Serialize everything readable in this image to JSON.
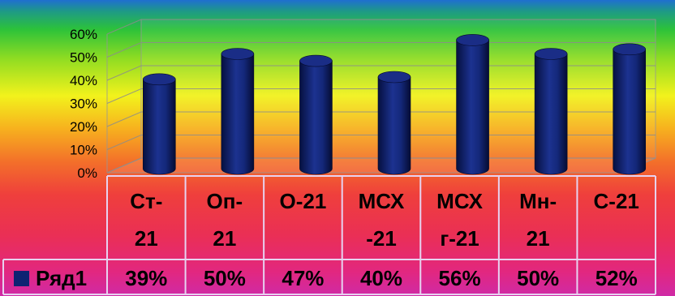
{
  "chart_data": {
    "type": "bar",
    "categories": [
      [
        "Ст-",
        "21"
      ],
      [
        "Оп-",
        "21"
      ],
      [
        "О-21"
      ],
      [
        "МСХ",
        "-21"
      ],
      [
        "МСХ",
        "г-21"
      ],
      [
        "Мн-",
        "21"
      ],
      [
        "С-21"
      ]
    ],
    "series": [
      {
        "name": "Ряд1",
        "values": [
          39,
          50,
          47,
          40,
          56,
          50,
          52
        ],
        "labels": [
          "39%",
          "50%",
          "47%",
          "40%",
          "56%",
          "50%",
          "52%"
        ],
        "color": "#0e2372"
      }
    ],
    "y_ticks": [
      "0%",
      "10%",
      "20%",
      "30%",
      "40%",
      "50%",
      "60%"
    ],
    "ylim": [
      0,
      60
    ],
    "grid": true,
    "legend": "table-left",
    "data_table": true
  }
}
